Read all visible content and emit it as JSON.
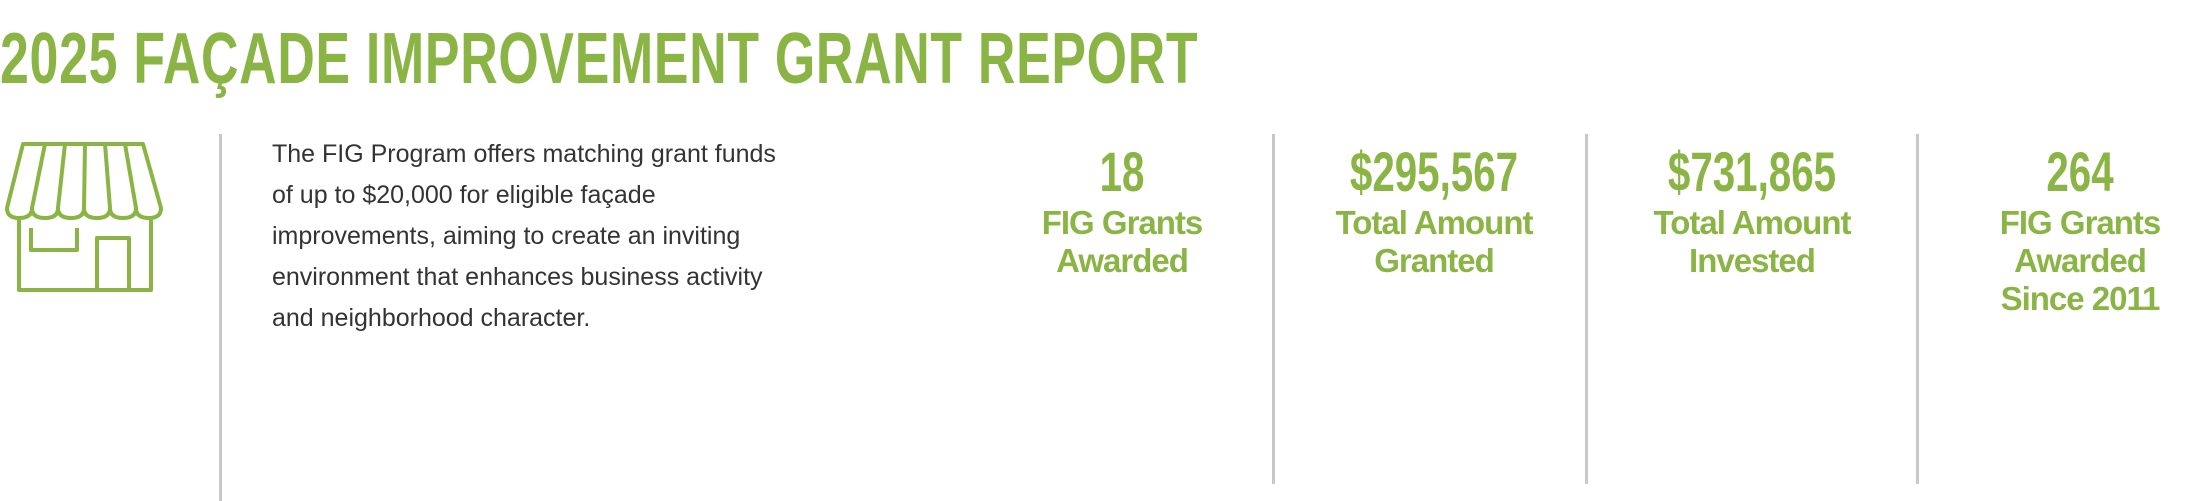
{
  "header": {
    "title": "2025 FAÇADE IMPROVEMENT GRANT REPORT"
  },
  "intro": "The FIG Program offers matching grant funds of up to $20,000 for eligible façade improvements, aiming to create an inviting environment that enhances business activity and neighborhood character.",
  "stats": [
    {
      "value": "18",
      "label": [
        "FIG Grants",
        "Awarded"
      ]
    },
    {
      "value": "$295,567",
      "label": [
        "Total Amount",
        "Granted"
      ]
    },
    {
      "value": "$731,865",
      "label": [
        "Total Amount",
        "Invested"
      ]
    },
    {
      "value": "264",
      "label": [
        "FIG Grants",
        "Awarded",
        "Since 2011"
      ]
    }
  ]
}
